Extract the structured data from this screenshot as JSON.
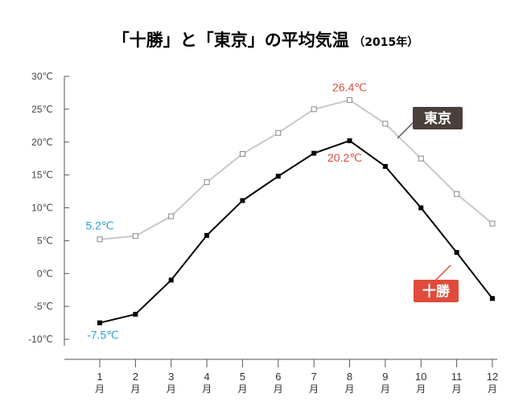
{
  "colors": {
    "tokachi_line": "#000000",
    "tokyo_line": "#c8c8c8",
    "tokyo_marker": "#888888",
    "cold_label": "#2a9fd6",
    "hot_label": "#e04b3b",
    "tokachi_legend_bg": "#e04b3b",
    "tokyo_legend_bg": "#4a3f3a",
    "axis": "#555555"
  },
  "chart_data": {
    "type": "line",
    "title_main": "「十勝」と「東京」の平均気温",
    "title_year": "（2015年）",
    "x": [
      "1\n月",
      "2\n月",
      "3\n月",
      "4\n月",
      "5\n月",
      "6\n月",
      "7\n月",
      "8\n月",
      "9\n月",
      "10\n月",
      "11\n月",
      "12\n月"
    ],
    "x_tick_numbers": [
      "1",
      "2",
      "3",
      "4",
      "5",
      "6",
      "7",
      "8",
      "9",
      "10",
      "11",
      "12"
    ],
    "x_tick_unit": "月",
    "y_ticks": [
      "30℃",
      "25℃",
      "20℃",
      "15℃",
      "10℃",
      "5℃",
      "0℃",
      "-5℃",
      "-10℃"
    ],
    "y_tick_values": [
      30,
      25,
      20,
      15,
      10,
      5,
      0,
      -5,
      -10
    ],
    "ylim": [
      -10,
      30
    ],
    "grid": false,
    "series": [
      {
        "name": "東京",
        "values": [
          5.2,
          5.7,
          8.7,
          13.9,
          18.2,
          21.4,
          25.0,
          26.4,
          22.8,
          17.5,
          12.1,
          7.6
        ]
      },
      {
        "name": "十勝",
        "values": [
          -7.5,
          -6.2,
          -1.0,
          5.8,
          11.1,
          14.8,
          18.3,
          20.2,
          16.3,
          10.0,
          3.2,
          -3.8
        ]
      }
    ],
    "annotations": [
      {
        "text": "26.4℃",
        "series": "東京",
        "index": 7,
        "kind": "max"
      },
      {
        "text": "5.2℃",
        "series": "東京",
        "index": 0,
        "kind": "min"
      },
      {
        "text": "20.2℃",
        "series": "十勝",
        "index": 7,
        "kind": "max"
      },
      {
        "text": "-7.5℃",
        "series": "十勝",
        "index": 0,
        "kind": "min"
      }
    ],
    "legend": [
      {
        "label": "東京",
        "series": "東京"
      },
      {
        "label": "十勝",
        "series": "十勝"
      }
    ]
  }
}
